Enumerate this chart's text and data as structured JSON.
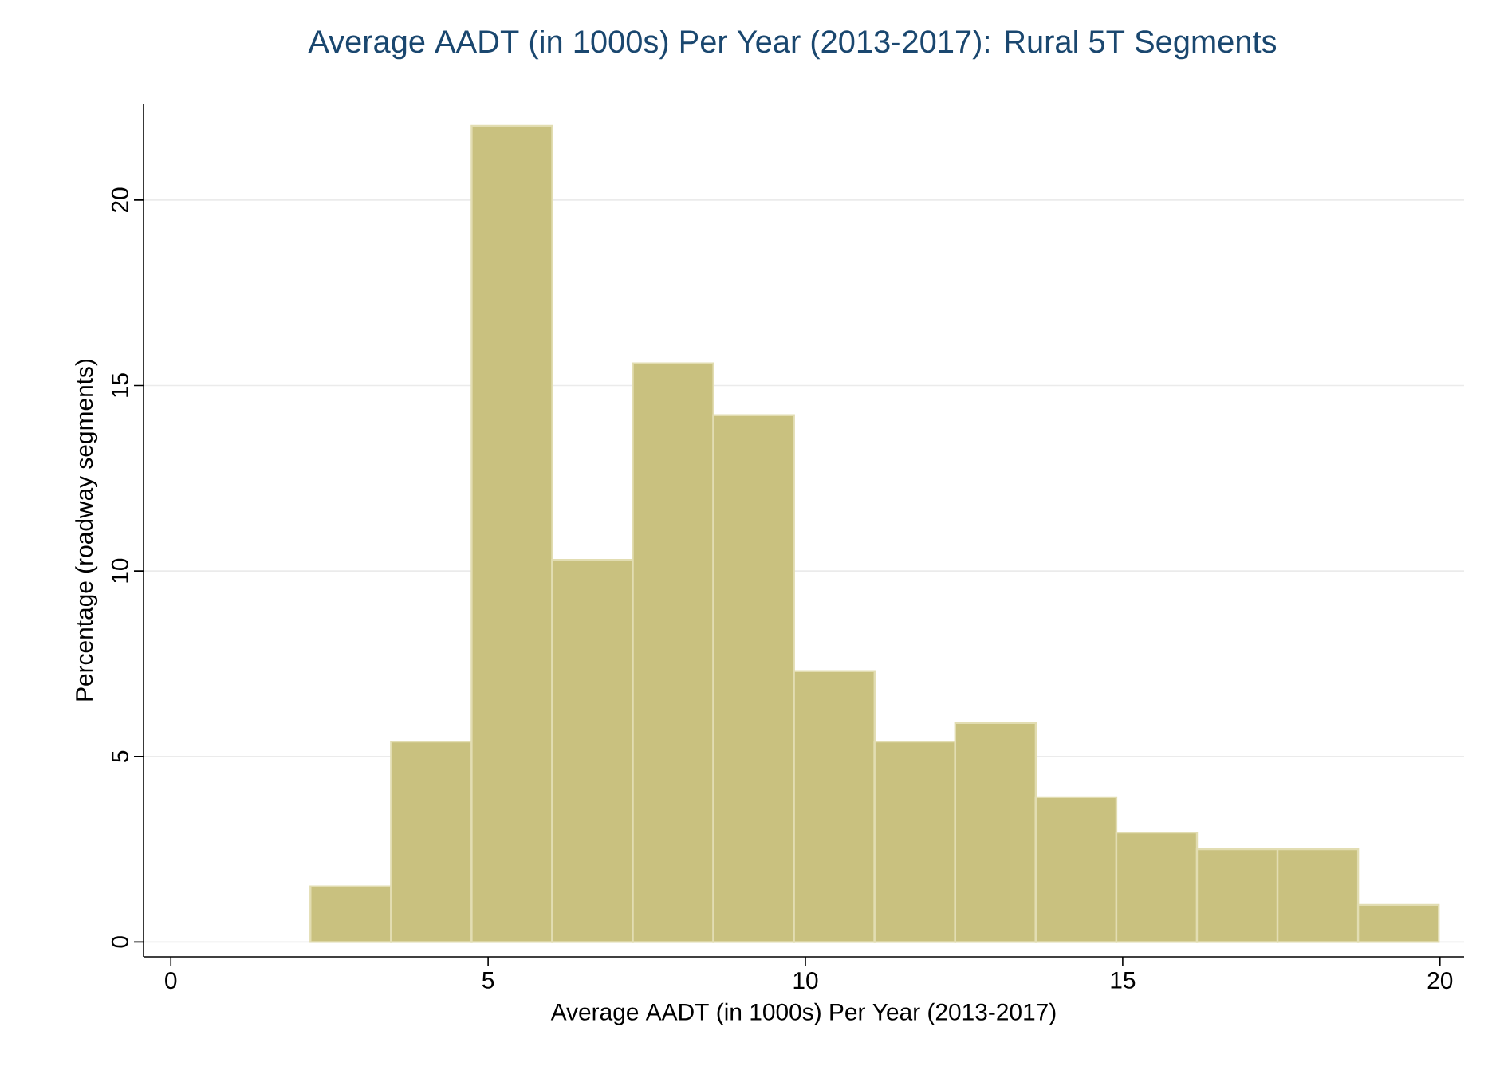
{
  "chart_data": {
    "type": "histogram",
    "title": "Average AADT (in 1000s) Per Year (2013-2017): Rural 5T Segments",
    "xlabel": "Average AADT (in 1000s) Per Year (2013-2017)",
    "ylabel": "Percentage (roadway segments)",
    "bins": [
      2.2,
      3.47,
      4.74,
      6.01,
      7.28,
      8.55,
      9.82,
      11.09,
      12.36,
      13.63,
      14.9,
      16.17,
      17.44,
      18.71,
      19.98
    ],
    "values": [
      1.5,
      5.4,
      22.0,
      10.3,
      15.6,
      14.2,
      7.3,
      5.4,
      5.9,
      3.9,
      2.95,
      2.5,
      2.5,
      1.0
    ],
    "color": "#c9c17f",
    "xlim": [
      -0.43,
      20.38
    ],
    "ylim": [
      -0.4,
      22.6
    ],
    "xticks": [
      0,
      5,
      10,
      15,
      20
    ],
    "yticks": [
      0,
      5,
      10,
      15,
      20
    ],
    "grid": "y"
  }
}
